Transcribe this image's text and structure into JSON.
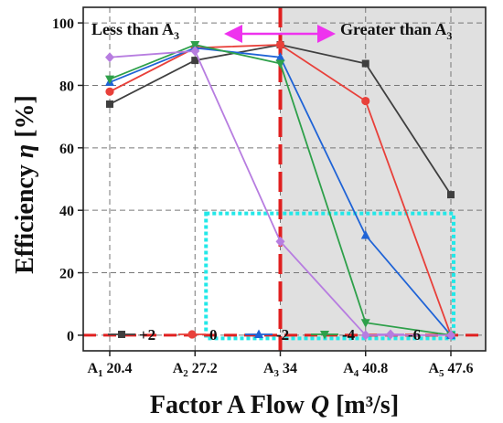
{
  "chart_data": {
    "type": "line",
    "x_ticks": [
      {
        "prefix": "A",
        "sub": "1",
        "value": "20.4"
      },
      {
        "prefix": "A",
        "sub": "2",
        "value": "27.2"
      },
      {
        "prefix": "A",
        "sub": "3",
        "value": "34"
      },
      {
        "prefix": "A",
        "sub": "4",
        "value": "40.8"
      },
      {
        "prefix": "A",
        "sub": "5",
        "value": "47.6"
      }
    ],
    "x": [
      20.4,
      27.2,
      34,
      40.8,
      47.6
    ],
    "y_ticks": [
      "0",
      "20",
      "40",
      "60",
      "80",
      "100"
    ],
    "ylim": [
      -5,
      105
    ],
    "xlabel": {
      "text": "Factor A Flow ",
      "symbol": "Q",
      "unit": " [m³/s]"
    },
    "ylabel": {
      "text": "Efficiency ",
      "symbol": "η",
      "unit": " [%]"
    },
    "regions": {
      "left_label": {
        "text": "Less than A",
        "sub": "3"
      },
      "right_label": {
        "text": "Greater than A",
        "sub": "3"
      },
      "split_x": 34,
      "shaded_color": "#e0e0e0"
    },
    "series": [
      {
        "name": "+2",
        "color": "#3f3f3f",
        "marker": "square",
        "values": [
          74,
          88,
          93,
          87,
          45
        ]
      },
      {
        "name": "0",
        "color": "#e8403a",
        "marker": "circle",
        "values": [
          78,
          92,
          93,
          75,
          0
        ]
      },
      {
        "name": "-2",
        "color": "#1f63d6",
        "marker": "triangle-up",
        "values": [
          81,
          92,
          89,
          32,
          0
        ]
      },
      {
        "name": "-4",
        "color": "#2ea04a",
        "marker": "triangle-down",
        "values": [
          82,
          93,
          87,
          4,
          0
        ]
      },
      {
        "name": "-6",
        "color": "#b77de0",
        "marker": "diamond",
        "values": [
          89,
          91,
          30,
          0,
          0
        ]
      }
    ],
    "annotations": {
      "zero_line_color": "#e02020",
      "split_line_color": "#e02020",
      "arrow_color": "#ee33ee",
      "highlight_box": {
        "x_from": 27.2,
        "x_to": 47.6,
        "y_from": -1,
        "y_to": 39,
        "color": "#22e8e8"
      }
    },
    "grid": true,
    "legend": "bottom"
  }
}
